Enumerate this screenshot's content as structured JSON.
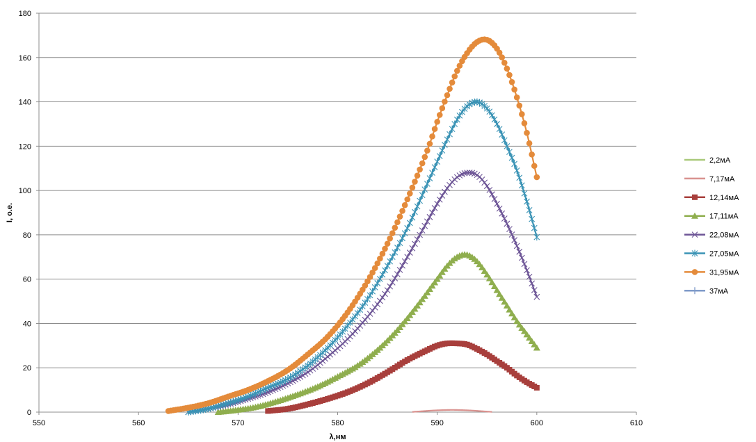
{
  "chart_data": {
    "type": "line",
    "title": "",
    "xlabel": "λ,нм",
    "ylabel": "I, o.e.",
    "xlim": [
      550,
      610
    ],
    "ylim": [
      0,
      180
    ],
    "x_ticks": [
      "550",
      "560",
      "570",
      "580",
      "590",
      "600",
      "610"
    ],
    "y_ticks": [
      "0",
      "20",
      "40",
      "60",
      "80",
      "100",
      "120",
      "140",
      "160",
      "180"
    ],
    "grid": "horizontal",
    "legend_position": "right",
    "series": [
      {
        "name": "2,2мА",
        "color": "#a9c97a",
        "marker": "none",
        "x": [],
        "y": []
      },
      {
        "name": "7,17мА",
        "color": "#d9928f",
        "marker": "none",
        "x": [
          587.5,
          588.5,
          589.5,
          590.5,
          591.5,
          592.5,
          593.5,
          594.5,
          595.5
        ],
        "y": [
          0.1,
          0.4,
          0.7,
          0.9,
          1.0,
          0.9,
          0.7,
          0.4,
          0.1
        ]
      },
      {
        "name": "12,14мА",
        "color": "#a83f3c",
        "marker": "square",
        "x": [
          573,
          575,
          577,
          579,
          581,
          583,
          585,
          587,
          589,
          590,
          591,
          592,
          593,
          594,
          595,
          596,
          597,
          598,
          599,
          600
        ],
        "y": [
          0.5,
          1.5,
          3.5,
          6,
          9,
          13,
          18,
          23.5,
          28,
          30,
          31,
          31,
          30.5,
          28.5,
          26,
          23,
          20,
          16.5,
          13.5,
          11
        ]
      },
      {
        "name": "17,11мА",
        "color": "#8fae4e",
        "marker": "triangle",
        "x": [
          568,
          570,
          572,
          574,
          576,
          578,
          580,
          582,
          584,
          586,
          588,
          590,
          591,
          592,
          593,
          594,
          595,
          596,
          597,
          598,
          599,
          600
        ],
        "y": [
          0,
          1,
          2.5,
          5,
          8,
          11.5,
          16,
          21,
          28,
          37,
          48,
          60,
          66,
          70,
          71,
          68,
          62,
          55,
          48,
          41,
          35,
          29
        ]
      },
      {
        "name": "22,08мА",
        "color": "#6d5596",
        "marker": "x",
        "x": [
          565,
          567,
          569,
          571,
          573,
          575,
          577,
          579,
          581,
          583,
          585,
          587,
          589,
          590,
          591,
          592,
          593,
          594,
          595,
          596,
          597,
          598,
          599,
          600
        ],
        "y": [
          0,
          1.5,
          3.5,
          6,
          9,
          13,
          18,
          25,
          33,
          43,
          55,
          70,
          86,
          94,
          101,
          106,
          108,
          107,
          102,
          94,
          85,
          75,
          64,
          52
        ]
      },
      {
        "name": "27,05мА",
        "color": "#3a93b5",
        "marker": "star",
        "x": [
          565,
          567,
          569,
          571,
          573,
          575,
          577,
          579,
          581,
          583,
          585,
          587,
          589,
          590,
          591,
          592,
          593,
          594,
          595,
          596,
          597,
          598,
          599,
          600
        ],
        "y": [
          0,
          1.5,
          4,
          7,
          11,
          15,
          21,
          29,
          39,
          51,
          66,
          83,
          103,
          113,
          123,
          132,
          138,
          140,
          137,
          130,
          120,
          109,
          95,
          79
        ]
      },
      {
        "name": "31,95мА",
        "color": "#e48b3b",
        "marker": "circle",
        "x": [
          563,
          565,
          567,
          569,
          571,
          573,
          575,
          577,
          579,
          581,
          583,
          585,
          587,
          589,
          590,
          591,
          592,
          593,
          594,
          595,
          596,
          597,
          598,
          599,
          600
        ],
        "y": [
          0.5,
          2,
          4,
          7,
          10,
          14,
          19,
          26,
          34,
          45,
          59,
          76,
          96,
          118,
          131,
          143,
          154,
          162,
          167,
          168,
          164,
          155,
          142,
          126,
          106
        ]
      },
      {
        "name": "37мА",
        "color": "#7f9ac9",
        "marker": "plus",
        "x": [],
        "y": []
      }
    ]
  }
}
